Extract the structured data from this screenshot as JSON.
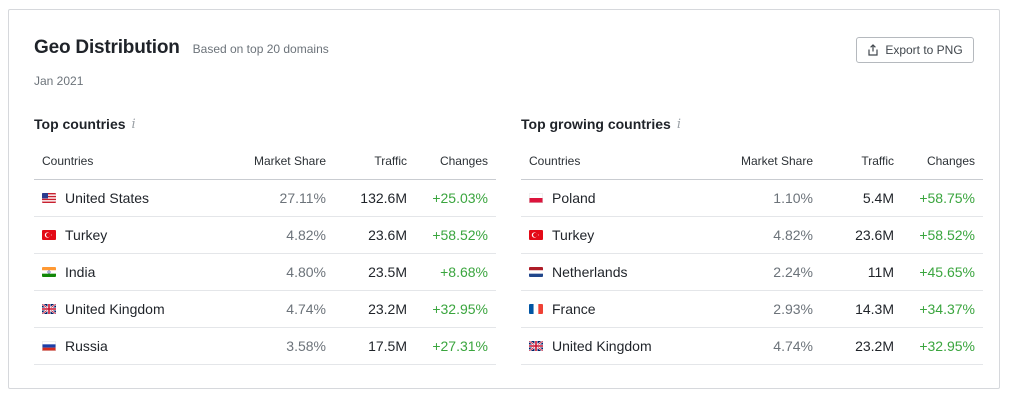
{
  "header": {
    "title": "Geo Distribution",
    "subtitle": "Based on top 20 domains",
    "date": "Jan 2021",
    "export_label": "Export to PNG",
    "export_icon": "share-upload-icon"
  },
  "columns": {
    "country": "Countries",
    "share": "Market Share",
    "traffic": "Traffic",
    "changes": "Changes"
  },
  "colors": {
    "positive_change": "#3aa53e",
    "muted_text": "#6c737a"
  },
  "top_countries": {
    "title": "Top countries",
    "info_icon": "info-icon",
    "rows": [
      {
        "flag": "us",
        "country": "United States",
        "share": "27.11%",
        "traffic": "132.6M",
        "change": "+25.03%"
      },
      {
        "flag": "tr",
        "country": "Turkey",
        "share": "4.82%",
        "traffic": "23.6M",
        "change": "+58.52%"
      },
      {
        "flag": "in",
        "country": "India",
        "share": "4.80%",
        "traffic": "23.5M",
        "change": "+8.68%"
      },
      {
        "flag": "gb",
        "country": "United Kingdom",
        "share": "4.74%",
        "traffic": "23.2M",
        "change": "+32.95%"
      },
      {
        "flag": "ru",
        "country": "Russia",
        "share": "3.58%",
        "traffic": "17.5M",
        "change": "+27.31%"
      }
    ]
  },
  "top_growing": {
    "title": "Top growing countries",
    "info_icon": "info-icon",
    "rows": [
      {
        "flag": "pl",
        "country": "Poland",
        "share": "1.10%",
        "traffic": "5.4M",
        "change": "+58.75%"
      },
      {
        "flag": "tr",
        "country": "Turkey",
        "share": "4.82%",
        "traffic": "23.6M",
        "change": "+58.52%"
      },
      {
        "flag": "nl",
        "country": "Netherlands",
        "share": "2.24%",
        "traffic": "11M",
        "change": "+45.65%"
      },
      {
        "flag": "fr",
        "country": "France",
        "share": "2.93%",
        "traffic": "14.3M",
        "change": "+34.37%"
      },
      {
        "flag": "gb",
        "country": "United Kingdom",
        "share": "4.74%",
        "traffic": "23.2M",
        "change": "+32.95%"
      }
    ]
  }
}
